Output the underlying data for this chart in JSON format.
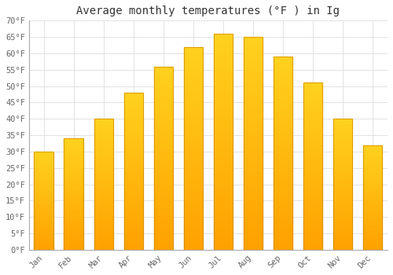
{
  "title": "Average monthly temperatures (°F ) in Ig",
  "months": [
    "Jan",
    "Feb",
    "Mar",
    "Apr",
    "May",
    "Jun",
    "Jul",
    "Aug",
    "Sep",
    "Oct",
    "Nov",
    "Dec"
  ],
  "values": [
    30,
    34,
    40,
    48,
    56,
    62,
    66,
    65,
    59,
    51,
    40,
    32
  ],
  "bar_color_top": "#FFD060",
  "bar_color_bottom": "#FFA000",
  "bar_edge_color": "#CC8800",
  "ylim": [
    0,
    70
  ],
  "yticks": [
    0,
    5,
    10,
    15,
    20,
    25,
    30,
    35,
    40,
    45,
    50,
    55,
    60,
    65,
    70
  ],
  "ytick_labels": [
    "0°F",
    "5°F",
    "10°F",
    "15°F",
    "20°F",
    "25°F",
    "30°F",
    "35°F",
    "40°F",
    "45°F",
    "50°F",
    "55°F",
    "60°F",
    "65°F",
    "70°F"
  ],
  "background_color": "#ffffff",
  "plot_bg_color": "#ffffff",
  "grid_color": "#dddddd",
  "title_fontsize": 10,
  "tick_fontsize": 7.5,
  "font_family": "monospace",
  "bar_width": 0.65
}
